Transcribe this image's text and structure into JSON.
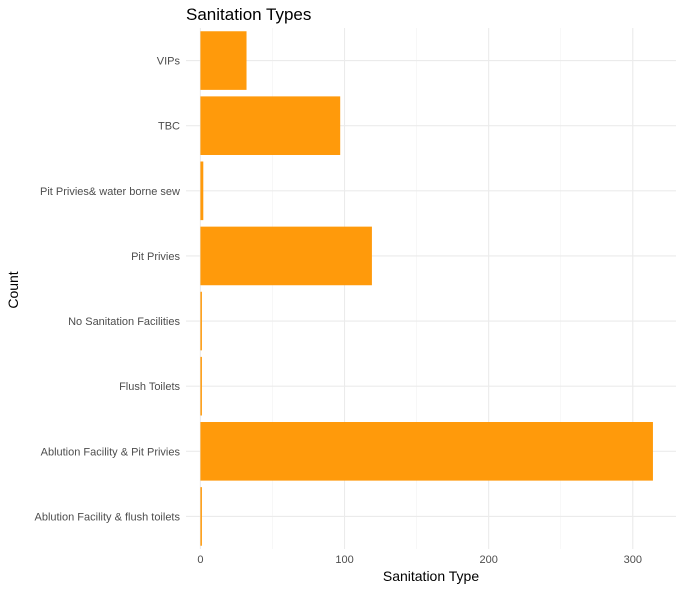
{
  "chart_data": {
    "type": "bar",
    "orientation": "horizontal",
    "title": "Sanitation Types",
    "xlabel": "Sanitation Type",
    "ylabel": "Count",
    "categories": [
      "Ablution Facility & flush toilets",
      "Ablution Facility & Pit Privies",
      "Flush Toilets",
      "No Sanitation Facilities",
      "Pit Privies",
      "Pit Privies& water borne sew",
      "TBC",
      "VIPs"
    ],
    "values": [
      1,
      314,
      1,
      1,
      119,
      2,
      97,
      32
    ],
    "xlim": [
      -10,
      330
    ],
    "xticks": [
      0,
      100,
      200,
      300
    ],
    "grid": true,
    "legend": "none",
    "bar_color": "#FF9A0B"
  }
}
